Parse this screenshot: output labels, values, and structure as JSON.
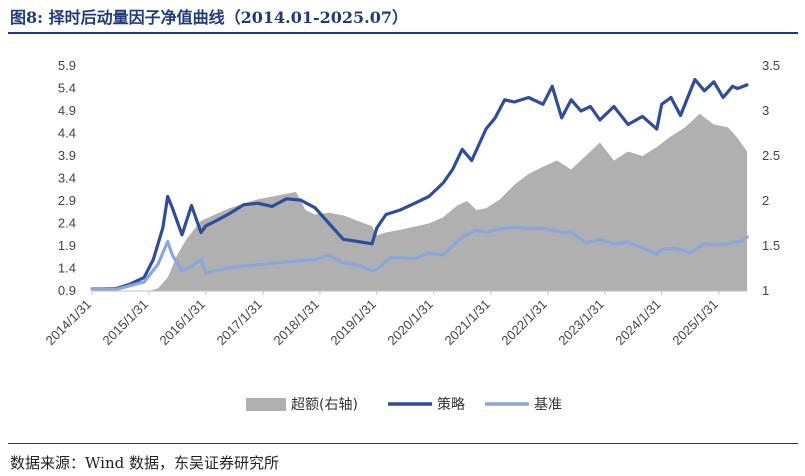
{
  "figure": {
    "title": "图8: 择时后动量因子净值曲线（2014.01-2025.07）",
    "source": "数据来源：Wind 数据，东吴证券研究所"
  },
  "chart_data": {
    "type": "line",
    "x_tick_labels": [
      "2014/1/31",
      "2015/1/31",
      "2016/1/31",
      "2017/1/31",
      "2018/1/31",
      "2019/1/31",
      "2020/1/31",
      "2021/1/31",
      "2022/1/31",
      "2023/1/31",
      "2024/1/31",
      "2025/1/31"
    ],
    "y_left": {
      "ticks": [
        "0.9",
        "1.4",
        "1.9",
        "2.4",
        "2.9",
        "3.4",
        "3.9",
        "4.4",
        "4.9",
        "5.4",
        "5.9"
      ],
      "ylim": [
        0.9,
        5.9
      ]
    },
    "y_right": {
      "ticks": [
        "1",
        "1.5",
        "2",
        "2.5",
        "3",
        "3.5"
      ],
      "ylim": [
        1.0,
        3.5
      ]
    },
    "colors": {
      "excess": "#b0b0b0",
      "strategy": "#2e4d9b",
      "benchmark": "#8aa6dc"
    },
    "series": [
      {
        "name": "超额(右轴)",
        "axis": "right",
        "kind": "area",
        "x": [
          "2014-01-31",
          "2014-06-30",
          "2014-11-30",
          "2015-01-31",
          "2015-03-31",
          "2015-05-31",
          "2015-07-31",
          "2015-09-30",
          "2015-12-31",
          "2016-06-30",
          "2016-12-31",
          "2017-06-30",
          "2017-08-31",
          "2017-10-31",
          "2017-12-31",
          "2018-03-31",
          "2018-06-30",
          "2018-12-31",
          "2019-01-31",
          "2019-03-31",
          "2019-06-30",
          "2019-12-31",
          "2020-03-31",
          "2020-06-30",
          "2020-08-31",
          "2020-10-31",
          "2020-12-31",
          "2021-03-31",
          "2021-06-30",
          "2021-09-30",
          "2021-12-31",
          "2022-03-31",
          "2022-06-30",
          "2022-09-30",
          "2022-12-31",
          "2023-03-31",
          "2023-06-30",
          "2023-09-30",
          "2023-12-31",
          "2024-03-31",
          "2024-06-30",
          "2024-09-30",
          "2024-12-31",
          "2025-03-31",
          "2025-05-31",
          "2025-07-31"
        ],
        "values": [
          1.0,
          1.0,
          1.0,
          1.0,
          1.03,
          1.15,
          1.4,
          1.58,
          1.78,
          1.92,
          2.02,
          2.08,
          2.1,
          1.9,
          1.85,
          1.87,
          1.84,
          1.72,
          1.62,
          1.65,
          1.68,
          1.75,
          1.82,
          1.95,
          2.0,
          1.9,
          1.92,
          2.02,
          2.18,
          2.3,
          2.38,
          2.45,
          2.35,
          2.5,
          2.65,
          2.45,
          2.55,
          2.5,
          2.6,
          2.72,
          2.82,
          2.97,
          2.85,
          2.82,
          2.7,
          2.55
        ]
      },
      {
        "name": "策略",
        "axis": "left",
        "kind": "line",
        "x": [
          "2014-01-31",
          "2014-06-30",
          "2014-09-30",
          "2014-12-31",
          "2015-02-28",
          "2015-04-30",
          "2015-05-31",
          "2015-06-30",
          "2015-08-31",
          "2015-10-31",
          "2015-12-31",
          "2016-01-31",
          "2016-03-31",
          "2016-06-30",
          "2016-09-30",
          "2016-12-31",
          "2017-03-31",
          "2017-06-30",
          "2017-09-30",
          "2017-12-31",
          "2018-03-31",
          "2018-06-30",
          "2018-09-30",
          "2018-12-31",
          "2019-01-31",
          "2019-03-31",
          "2019-06-30",
          "2019-09-30",
          "2019-12-31",
          "2020-03-31",
          "2020-05-31",
          "2020-07-31",
          "2020-09-30",
          "2020-12-31",
          "2021-02-28",
          "2021-04-30",
          "2021-06-30",
          "2021-09-30",
          "2021-12-31",
          "2022-02-28",
          "2022-04-30",
          "2022-06-30",
          "2022-08-31",
          "2022-10-31",
          "2022-12-31",
          "2023-03-31",
          "2023-06-30",
          "2023-09-30",
          "2023-12-31",
          "2024-01-31",
          "2024-03-31",
          "2024-05-31",
          "2024-08-31",
          "2024-10-31",
          "2024-12-31",
          "2025-02-28",
          "2025-04-30",
          "2025-05-31",
          "2025-07-31"
        ],
        "values": [
          0.95,
          0.95,
          1.05,
          1.2,
          1.6,
          2.3,
          3.0,
          2.75,
          2.15,
          2.8,
          2.2,
          2.35,
          2.45,
          2.62,
          2.82,
          2.85,
          2.78,
          2.95,
          2.92,
          2.75,
          2.4,
          2.05,
          2.0,
          1.95,
          2.3,
          2.6,
          2.7,
          2.85,
          3.0,
          3.3,
          3.6,
          4.05,
          3.8,
          4.5,
          4.75,
          5.15,
          5.1,
          5.2,
          5.05,
          5.45,
          4.75,
          5.15,
          4.9,
          5.0,
          4.7,
          5.0,
          4.6,
          4.78,
          4.5,
          5.05,
          5.2,
          4.8,
          5.6,
          5.35,
          5.55,
          5.2,
          5.45,
          5.4,
          5.48
        ]
      },
      {
        "name": "基准",
        "axis": "left",
        "kind": "line",
        "x": [
          "2014-01-31",
          "2014-06-30",
          "2014-12-31",
          "2015-03-31",
          "2015-05-31",
          "2015-06-30",
          "2015-08-31",
          "2015-10-31",
          "2015-12-31",
          "2016-01-31",
          "2016-06-30",
          "2016-12-31",
          "2017-06-30",
          "2017-12-31",
          "2018-03-31",
          "2018-06-30",
          "2018-09-30",
          "2018-12-31",
          "2019-01-31",
          "2019-04-30",
          "2019-09-30",
          "2019-12-31",
          "2020-03-31",
          "2020-07-31",
          "2020-10-31",
          "2020-12-31",
          "2021-03-31",
          "2021-06-30",
          "2021-09-30",
          "2021-12-31",
          "2022-04-30",
          "2022-06-30",
          "2022-09-30",
          "2022-12-31",
          "2023-03-31",
          "2023-06-30",
          "2023-09-30",
          "2023-12-31",
          "2024-01-31",
          "2024-04-30",
          "2024-07-31",
          "2024-10-31",
          "2024-12-31",
          "2025-03-31",
          "2025-06-30",
          "2025-07-31"
        ],
        "values": [
          0.95,
          0.93,
          1.1,
          1.5,
          2.0,
          1.7,
          1.35,
          1.45,
          1.6,
          1.3,
          1.42,
          1.48,
          1.55,
          1.6,
          1.7,
          1.52,
          1.48,
          1.35,
          1.38,
          1.65,
          1.62,
          1.75,
          1.7,
          2.1,
          2.25,
          2.2,
          2.28,
          2.32,
          2.28,
          2.3,
          2.2,
          2.22,
          1.97,
          2.05,
          1.95,
          1.98,
          1.86,
          1.72,
          1.83,
          1.85,
          1.75,
          1.95,
          1.92,
          1.95,
          2.02,
          2.1
        ]
      }
    ]
  }
}
